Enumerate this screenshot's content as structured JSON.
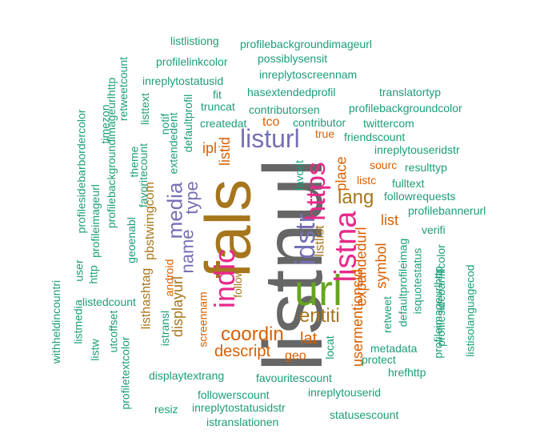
{
  "palette": {
    "green": "#1b9e77",
    "orange": "#d95f02",
    "purple": "#7570b3",
    "magenta": "#e7298a",
    "lime": "#66a61e",
    "ochre": "#a6761d",
    "grey": "#666666"
  },
  "words": [
    "listnul",
    "fals",
    "url",
    "listna",
    "indic",
    "idstr",
    "https",
    "listurl",
    "media",
    "name",
    "type",
    "coordin",
    "lang",
    "entiti",
    "descript",
    "listid",
    "place",
    "lat",
    "usermentionsid",
    "expandedurl",
    "symbol",
    "list",
    "displayurl",
    "pbstwimgcom",
    "listhashtag",
    "ipl",
    "tco",
    "listlist",
    "geo",
    "listc",
    "follow",
    "favorit",
    "translatortyp",
    "true",
    "sourc",
    "locat",
    "retweet",
    "resulttyp",
    "fulltext",
    "followrequests",
    "profilebannerurl",
    "verifi",
    "isquotestatus",
    "metadata",
    "protect",
    "hrefhttp",
    "defaultprofileimag",
    "profileimageurlhttp",
    "profilesidebarfillcolor",
    "listisolanguagecod",
    "inreplytouseridstr",
    "friendscount",
    "twittercom",
    "contributor",
    "contributorsen",
    "profilebackgroundcolor",
    "createdat",
    "truncat",
    "hasextendedprofil",
    "inreplytoscreennam",
    "possiblysensit",
    "profilebackgroundimageurl",
    "listlistiong",
    "profilelinkcolor",
    "inreplytostatusid",
    "fit",
    "defaultprofil",
    "extendedent",
    "notif",
    "listtext",
    "retweetcount",
    "theme",
    "favoritecount",
    "timezon",
    "profilebackgroundimageurlhttp",
    "profileimageurl",
    "geoenabl",
    "profilesidebarbordercolor",
    "user",
    "http",
    "listedcount",
    "utcoffset",
    "profiletextcolor",
    "listmedia",
    "listw",
    "withheldincountri",
    "istransl",
    "android",
    "screennam",
    "displaytextrang",
    "favouritescount",
    "followerscount",
    "inreplytouserid",
    "resiz",
    "inreplytostatusidstr",
    "statusescount",
    "istranslationen"
  ]
}
